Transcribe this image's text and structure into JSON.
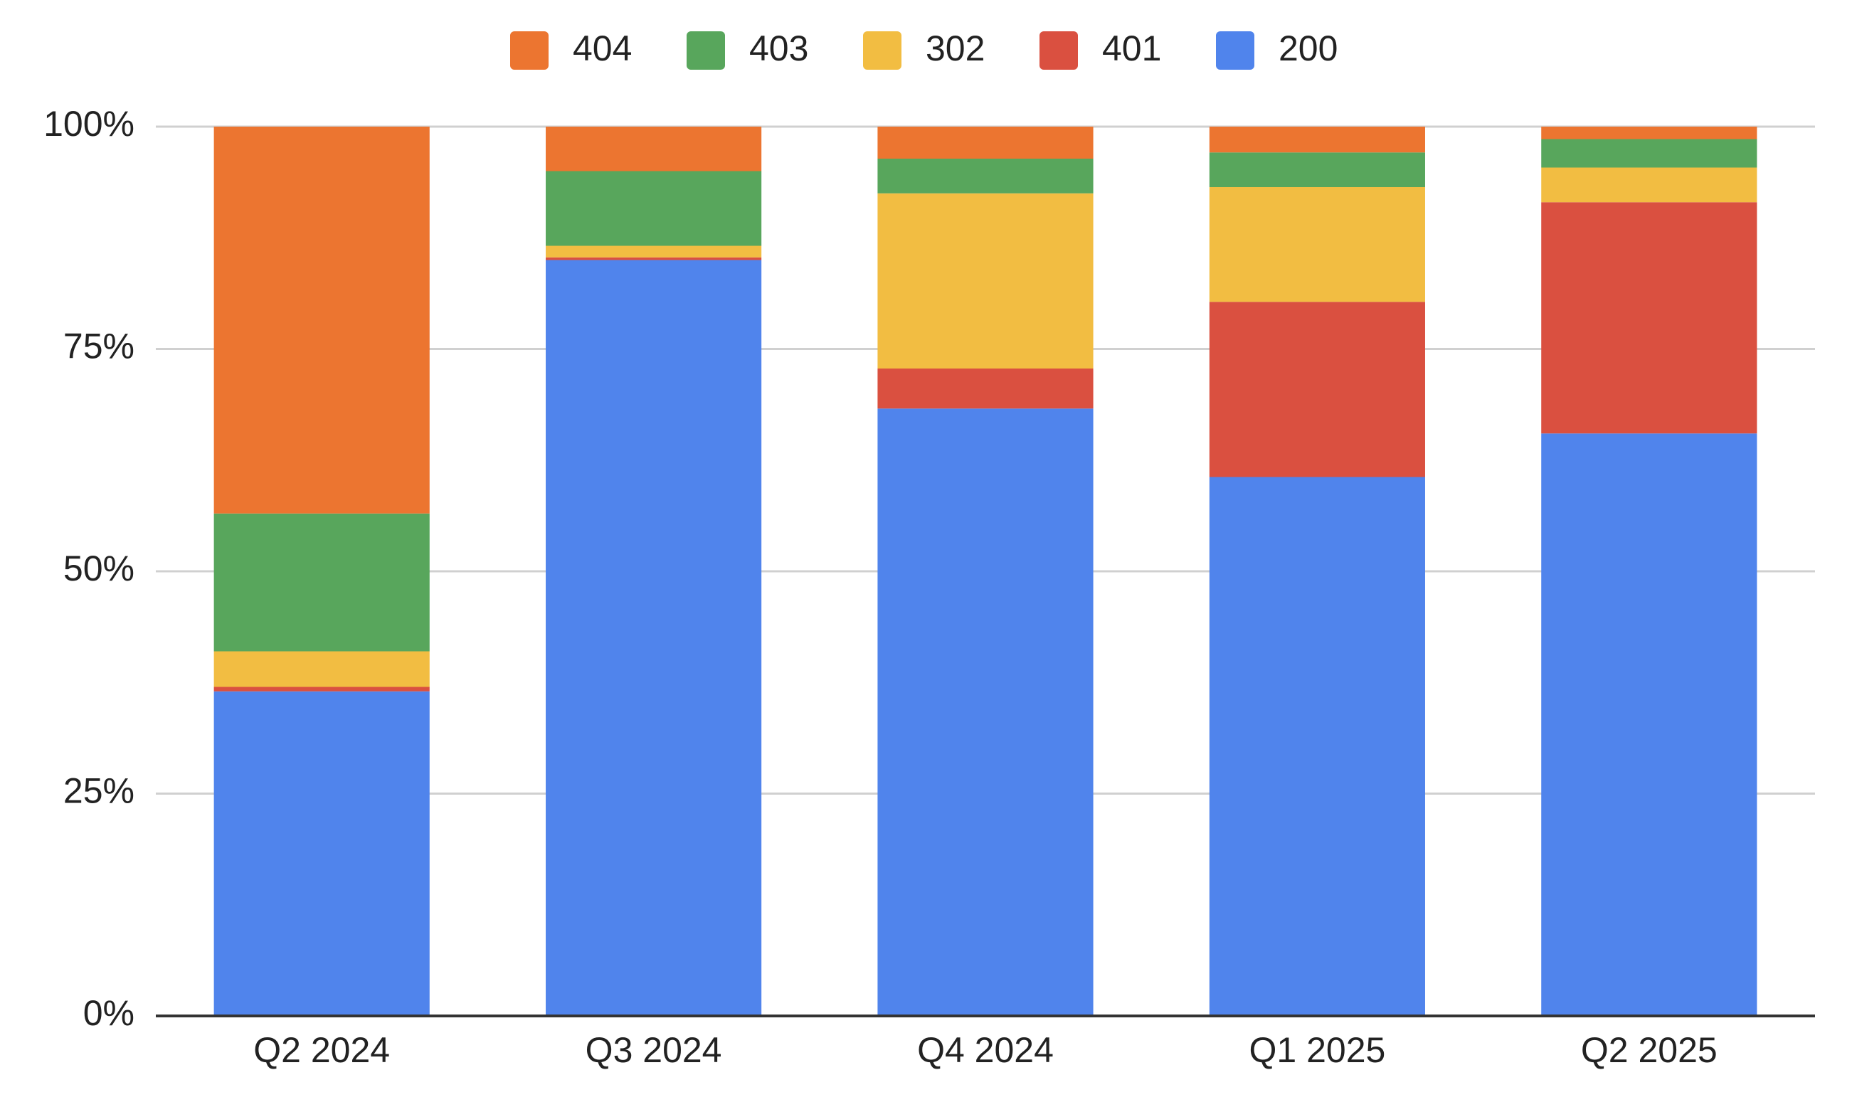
{
  "chart_data": {
    "type": "stacked-bar",
    "categories": [
      "Q2 2024",
      "Q3 2024",
      "Q4 2024",
      "Q1 2025",
      "Q2 2025"
    ],
    "series": [
      {
        "name": "404",
        "color": "#ec7530",
        "values": [
          43.5,
          5.0,
          3.6,
          2.9,
          1.4
        ]
      },
      {
        "name": "403",
        "color": "#58a65c",
        "values": [
          15.5,
          8.4,
          3.9,
          3.9,
          3.2
        ]
      },
      {
        "name": "302",
        "color": "#f2bd42",
        "values": [
          4.0,
          1.3,
          19.7,
          12.9,
          3.9
        ]
      },
      {
        "name": "401",
        "color": "#da5040",
        "values": [
          0.5,
          0.3,
          4.5,
          19.7,
          26.0
        ]
      },
      {
        "name": "200",
        "color": "#5084ec",
        "values": [
          36.5,
          85.0,
          68.3,
          60.6,
          65.5
        ]
      }
    ],
    "ylim": [
      0,
      100
    ],
    "yticks": [
      {
        "value": 0,
        "label": "0%"
      },
      {
        "value": 25,
        "label": "25%"
      },
      {
        "value": 50,
        "label": "50%"
      },
      {
        "value": 75,
        "label": "75%"
      },
      {
        "value": 100,
        "label": "100%"
      }
    ],
    "grid": true,
    "legend": "top"
  }
}
